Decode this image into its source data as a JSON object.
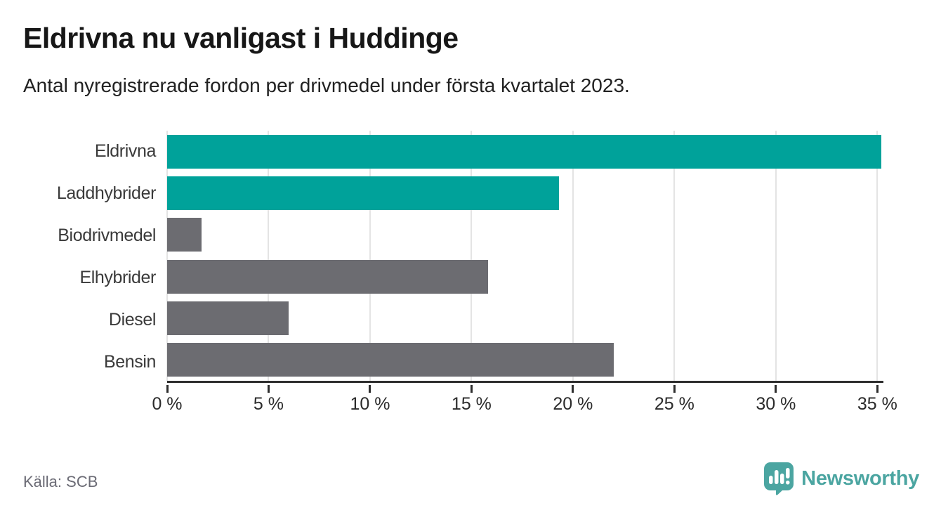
{
  "header": {
    "title": "Eldrivna nu vanligast i Huddinge",
    "subtitle": "Antal nyregistrerade fordon per drivmedel under första kvartalet 2023."
  },
  "chart_data": {
    "type": "bar",
    "orientation": "horizontal",
    "title": "Eldrivna nu vanligast i Huddinge",
    "subtitle": "Antal nyregistrerade fordon per drivmedel under första kvartalet 2023.",
    "categories": [
      "Eldrivna",
      "Laddhybrider",
      "Biodrivmedel",
      "Elhybrider",
      "Diesel",
      "Bensin"
    ],
    "values": [
      35.2,
      19.3,
      1.7,
      15.8,
      6.0,
      22.0
    ],
    "unit": "%",
    "highlighted": [
      true,
      true,
      false,
      false,
      false,
      false
    ],
    "xlim": [
      0,
      35.3
    ],
    "xticks": [
      0,
      5,
      10,
      15,
      20,
      25,
      30,
      35
    ],
    "xtick_labels": [
      "0 %",
      "5 %",
      "10 %",
      "15 %",
      "20 %",
      "25 %",
      "30 %",
      "35 %"
    ],
    "grid": "vertical-gridlines-on",
    "legend": "none",
    "colors": {
      "highlight": "#00a29a",
      "muted": "#6c6c71",
      "axis": "#2e2e2e",
      "gridline": "#e4e4e4"
    }
  },
  "footer": {
    "source": "Källa: SCB",
    "brand": "Newsworthy",
    "brand_color": "#4ba5a1",
    "brand_icon": "newsworthy-speech-bubble-bar-chart-icon"
  }
}
